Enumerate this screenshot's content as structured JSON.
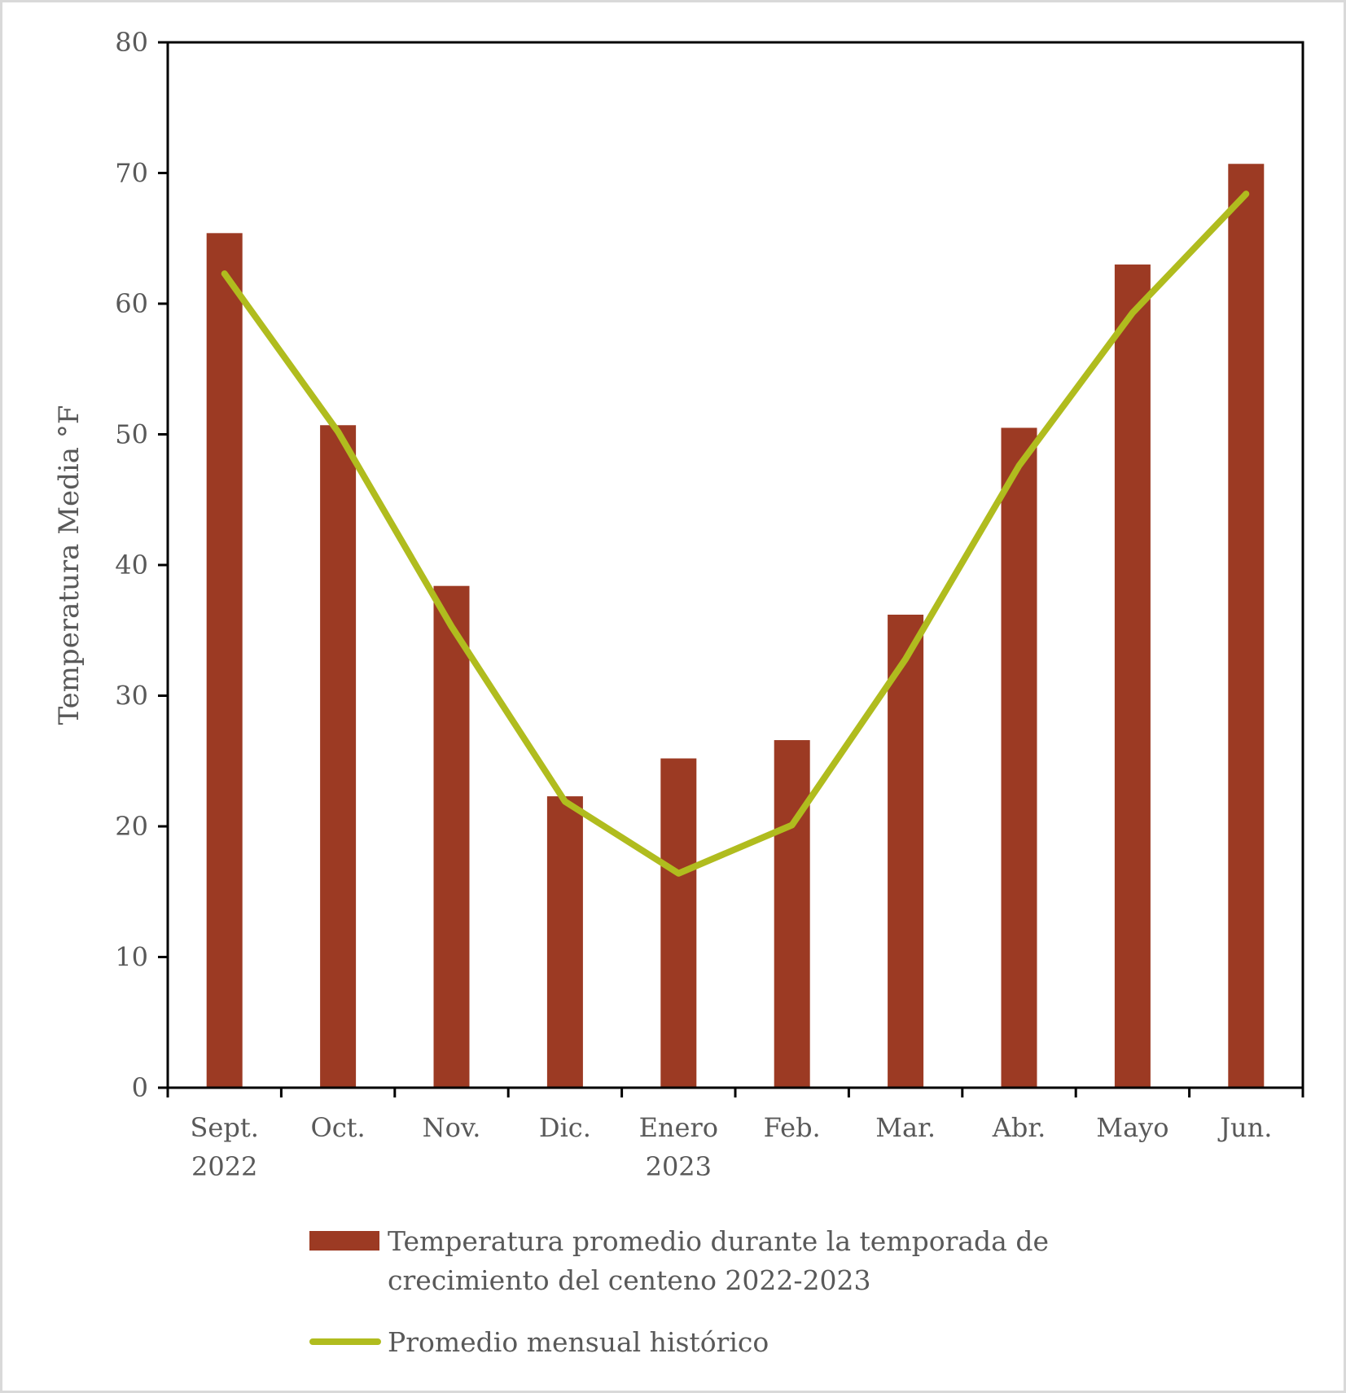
{
  "chart_data": {
    "type": "bar",
    "title": "",
    "xlabel": "",
    "ylabel": "Temperatura Media °F",
    "ylim": [
      0,
      80
    ],
    "yticks": [
      0,
      10,
      20,
      30,
      40,
      50,
      60,
      70,
      80
    ],
    "grid": false,
    "categories": [
      [
        "Sept.",
        "2022"
      ],
      [
        "Oct."
      ],
      [
        "Nov."
      ],
      [
        "Dic."
      ],
      [
        "Enero",
        "2023"
      ],
      [
        "Feb."
      ],
      [
        "Mar."
      ],
      [
        "Abr."
      ],
      [
        "Mayo"
      ],
      [
        "Jun."
      ]
    ],
    "series": [
      {
        "name": "Temperatura promedio durante la temporada de crecimiento del centeno 2022-2023",
        "legend_lines": [
          "Temperatura promedio durante la temporada de",
          "crecimiento del centeno 2022-2023"
        ],
        "type": "bar",
        "color": "#9c3a23",
        "values": [
          65.4,
          50.7,
          38.4,
          22.3,
          25.2,
          26.6,
          36.2,
          50.5,
          63.0,
          70.7
        ]
      },
      {
        "name": "Promedio mensual histórico",
        "legend_lines": [
          "Promedio mensual histórico"
        ],
        "type": "line",
        "color": "#b0bc1e",
        "values": [
          62.3,
          50.2,
          35.3,
          21.9,
          16.4,
          20.1,
          32.8,
          47.6,
          59.3,
          68.4
        ]
      }
    ],
    "legend_position": "bottom"
  }
}
